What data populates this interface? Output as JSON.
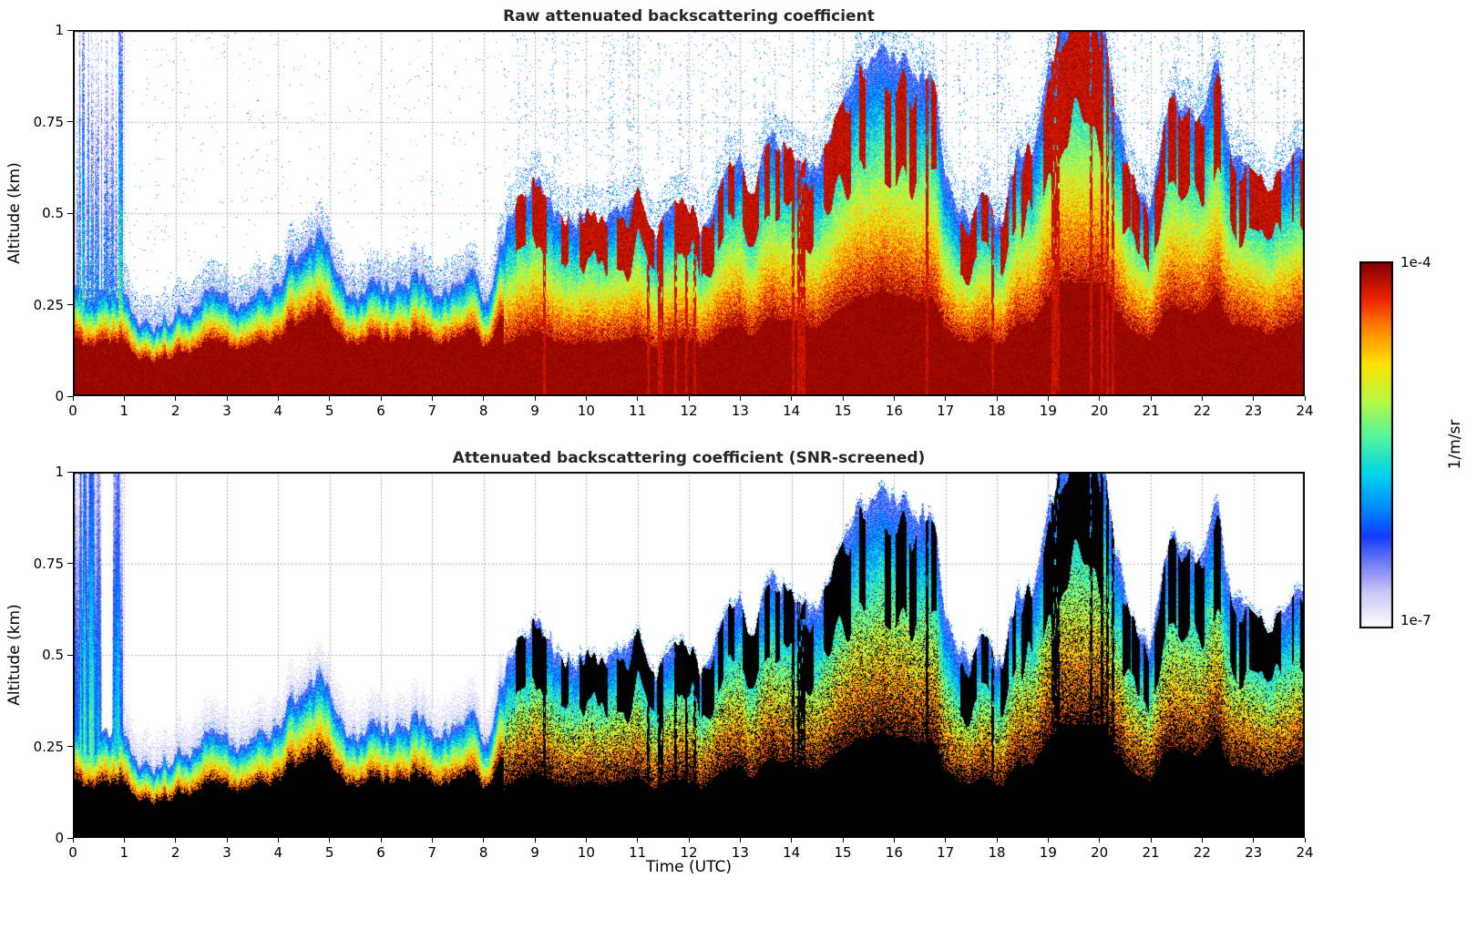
{
  "figure": {
    "panels": [
      {
        "title": "Raw attenuated backscattering coefficient",
        "ylabel": "Altitude (km)"
      },
      {
        "title": "Attenuated backscattering coefficient (SNR-screened)",
        "ylabel": "Altitude (km)",
        "xlabel": "Time (UTC)"
      }
    ],
    "colorbar": {
      "max_label": "1e-4",
      "min_label": "1e-7",
      "units_label": "1/m/sr"
    }
  },
  "chart_data": [
    {
      "type": "heatmap",
      "title": "Raw attenuated backscattering coefficient",
      "xlabel": "Time (UTC)",
      "ylabel": "Altitude (km)",
      "x_range": [
        0,
        24
      ],
      "y_range": [
        0,
        1
      ],
      "x_ticks": [
        0,
        1,
        2,
        3,
        4,
        5,
        6,
        7,
        8,
        9,
        10,
        11,
        12,
        13,
        14,
        15,
        16,
        17,
        18,
        19,
        20,
        21,
        22,
        23,
        24
      ],
      "y_ticks": [
        0,
        0.25,
        0.5,
        0.75,
        1
      ],
      "grid": true,
      "color_scale": {
        "type": "log",
        "min": 1e-07,
        "max": 0.0001,
        "units": "1/m/sr",
        "colormap": "jet",
        "min_label": "1e-7",
        "max_label": "1e-4"
      },
      "screened": false,
      "aerosol_layer_top_km": {
        "t_start_h": 0,
        "t_step_h": 0.5,
        "values": [
          0.3,
          0.3,
          0.28,
          0.22,
          0.27,
          0.25,
          0.28,
          0.3,
          0.33,
          0.4,
          0.38,
          0.31,
          0.33,
          0.35,
          0.33,
          0.3,
          0.28,
          0.52,
          0.55,
          0.5,
          0.46,
          0.46,
          0.5,
          0.55,
          0.55,
          0.5,
          0.58,
          0.65,
          0.6,
          0.55,
          0.72,
          0.85,
          0.8,
          0.9,
          0.62,
          0.55,
          0.5,
          0.6,
          0.92,
          1.0,
          0.95,
          0.7,
          0.55,
          0.78,
          0.85,
          0.75,
          0.65,
          0.6,
          0.6
        ]
      },
      "features": {
        "noisy_column_hours": [
          0,
          0.97
        ],
        "boundary_layer_hours": [
          0,
          8.4
        ],
        "cloudy_convective_hours": [
          8.4,
          24
        ],
        "rain_streak_hours": [
          [
            11.3,
            12.6
          ],
          [
            13.8,
            14.3
          ],
          [
            18.9,
            20.4
          ]
        ],
        "saturated_surface_value_1_m_sr": 0.0001
      }
    },
    {
      "type": "heatmap",
      "title": "Attenuated backscattering coefficient (SNR-screened)",
      "xlabel": "Time (UTC)",
      "ylabel": "Altitude (km)",
      "x_range": [
        0,
        24
      ],
      "y_range": [
        0,
        1
      ],
      "x_ticks": [
        0,
        1,
        2,
        3,
        4,
        5,
        6,
        7,
        8,
        9,
        10,
        11,
        12,
        13,
        14,
        15,
        16,
        17,
        18,
        19,
        20,
        21,
        22,
        23,
        24
      ],
      "y_ticks": [
        0,
        0.25,
        0.5,
        0.75,
        1
      ],
      "grid": true,
      "color_scale": {
        "type": "log",
        "min": 1e-07,
        "max": 0.0001,
        "units": "1/m/sr",
        "colormap": "jet",
        "min_label": "1e-7",
        "max_label": "1e-4"
      },
      "screened": true,
      "aerosol_layer_top_km": {
        "t_start_h": 0,
        "t_step_h": 0.5,
        "values": [
          0.3,
          0.3,
          0.28,
          0.22,
          0.27,
          0.25,
          0.28,
          0.3,
          0.33,
          0.4,
          0.38,
          0.31,
          0.33,
          0.35,
          0.33,
          0.3,
          0.28,
          0.52,
          0.55,
          0.5,
          0.46,
          0.46,
          0.5,
          0.55,
          0.55,
          0.5,
          0.58,
          0.65,
          0.6,
          0.55,
          0.72,
          0.85,
          0.8,
          0.9,
          0.62,
          0.55,
          0.5,
          0.6,
          0.92,
          1.0,
          0.95,
          0.7,
          0.55,
          0.78,
          0.85,
          0.75,
          0.65,
          0.6,
          0.6
        ]
      },
      "features": {
        "noisy_column_hours": [
          0,
          0.97
        ],
        "boundary_layer_hours": [
          0,
          8.4
        ],
        "cloudy_convective_hours": [
          8.4,
          24
        ],
        "rain_streak_hours": [
          [
            11.3,
            12.6
          ],
          [
            13.8,
            14.3
          ],
          [
            18.9,
            20.4
          ]
        ],
        "snr_mask_above_layer": true,
        "saturated_shown_black": true,
        "white_gap_hours": [
          0.5,
          0.82
        ]
      }
    }
  ]
}
